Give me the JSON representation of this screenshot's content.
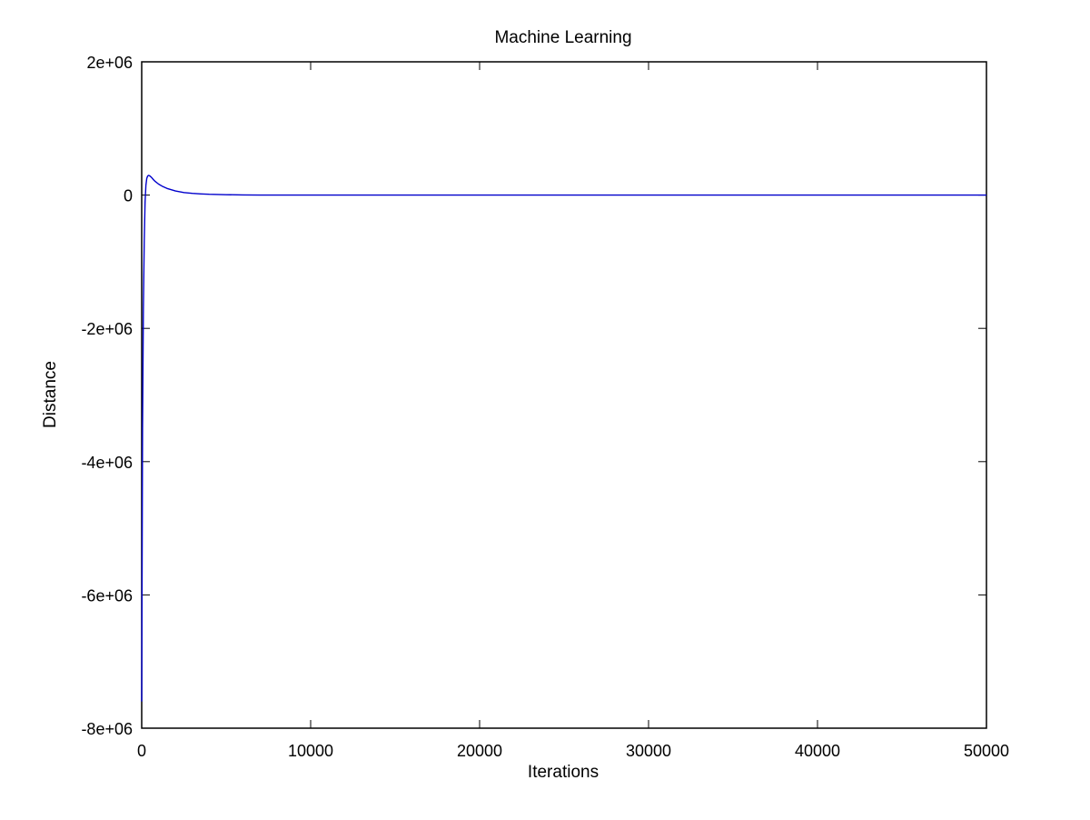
{
  "chart_data": {
    "type": "line",
    "title": "Machine Learning",
    "xlabel": "Iterations",
    "ylabel": "Distance",
    "xlim": [
      0,
      50000
    ],
    "ylim": [
      -8000000,
      2000000
    ],
    "xticks": [
      0,
      10000,
      20000,
      30000,
      40000,
      50000
    ],
    "xtick_labels": [
      "0",
      "10000",
      "20000",
      "30000",
      "40000",
      "50000"
    ],
    "yticks": [
      2000000,
      0,
      -2000000,
      -4000000,
      -6000000,
      -8000000
    ],
    "ytick_labels": [
      "2e+06",
      "0",
      "-2e+06",
      "-4e+06",
      "-6e+06",
      "-8e+06"
    ],
    "grid": false,
    "series": [
      {
        "color": "#0000cc",
        "x": [
          0,
          20,
          50,
          100,
          150,
          200,
          250,
          300,
          350,
          400,
          450,
          500,
          600,
          700,
          800,
          1000,
          1200,
          1500,
          2000,
          2500,
          3000,
          3500,
          4000,
          5000,
          6000,
          7000,
          8000,
          10000,
          15000,
          20000,
          30000,
          40000,
          50000
        ],
        "y": [
          -7600000,
          -6000000,
          -3500000,
          -1700000,
          -700000,
          -100000,
          150000,
          250000,
          285000,
          295000,
          292000,
          285000,
          260000,
          230000,
          205000,
          165000,
          135000,
          100000,
          62000,
          38000,
          26000,
          18000,
          12000,
          6000,
          2500,
          1000,
          400,
          100,
          0,
          0,
          0,
          0,
          0
        ]
      }
    ]
  }
}
